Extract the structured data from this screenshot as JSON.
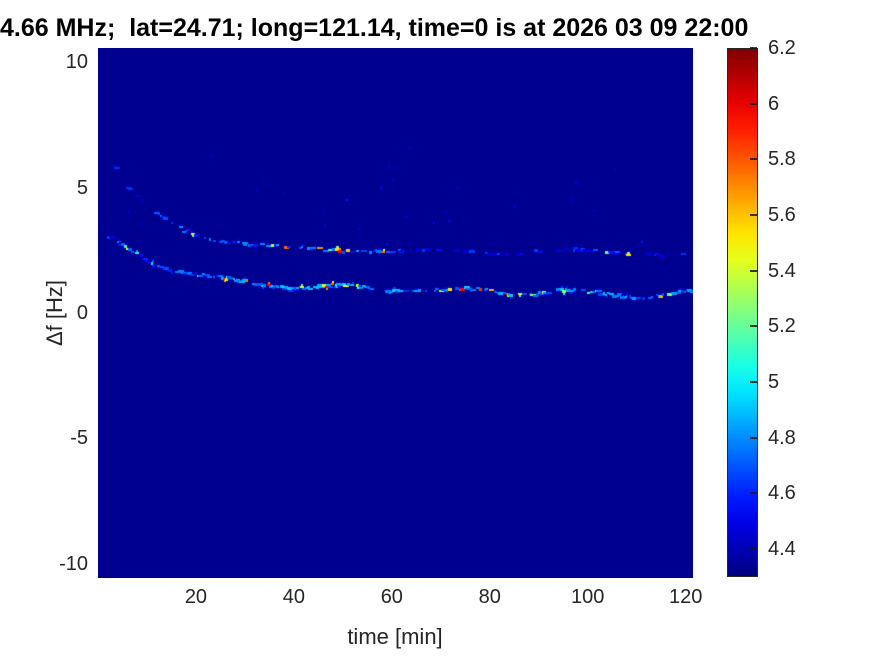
{
  "chart_data": {
    "type": "heatmap",
    "title": "4.66 MHz;  lat=24.71; long=121.14, time=0 is at 2026 03 09 22:00",
    "xlabel": "time [min]",
    "ylabel": "Δf [Hz]",
    "xlim": [
      0,
      121.5
    ],
    "ylim": [
      -10.56,
      10.56
    ],
    "xticks": [
      20,
      40,
      60,
      80,
      100,
      120
    ],
    "yticks": [
      10,
      5,
      0,
      -5,
      -10
    ],
    "grid": false,
    "legend": null,
    "colorbar": {
      "min": 4.3,
      "max": 6.2,
      "ticks": [
        6.2,
        6,
        5.8,
        5.6,
        5.4,
        5.2,
        5,
        4.8,
        4.6,
        4.4
      ],
      "colormap": "jet",
      "position": "right"
    },
    "background_value": 4.33,
    "seed": 20260309,
    "traces": [
      {
        "name": "upper-doppler-trace",
        "points": [
          [
            3.5,
            5.9
          ],
          [
            5,
            5.25
          ],
          [
            7,
            4.8
          ],
          [
            9,
            4.45
          ],
          [
            11,
            4.1
          ],
          [
            13,
            3.85
          ],
          [
            16,
            3.5
          ],
          [
            19,
            3.22
          ],
          [
            22,
            3.03
          ],
          [
            25,
            2.9
          ],
          [
            28,
            2.8
          ],
          [
            32,
            2.7
          ],
          [
            36,
            2.64
          ],
          [
            40,
            2.6
          ],
          [
            45,
            2.55
          ],
          [
            50,
            2.52
          ],
          [
            56,
            2.48
          ],
          [
            62,
            2.45
          ],
          [
            70,
            2.42
          ],
          [
            78,
            2.44
          ],
          [
            86,
            2.4
          ],
          [
            94,
            2.46
          ],
          [
            100,
            2.48
          ],
          [
            106,
            2.4
          ],
          [
            112,
            2.38
          ],
          [
            121,
            2.35
          ]
        ],
        "wiggle": {
          "amp": 0.06,
          "period": 30,
          "phase": 0
        },
        "segments": [
          {
            "t0": 3.5,
            "t1": 12,
            "density": 0.3,
            "base": 4.5,
            "bright": 0.05
          },
          {
            "t0": 12,
            "t1": 30,
            "density": 0.55,
            "base": 4.68,
            "bright": 0.1
          },
          {
            "t0": 30,
            "t1": 62,
            "density": 0.55,
            "base": 4.7,
            "bright": 0.12
          },
          {
            "t0": 62,
            "t1": 94,
            "density": 0.32,
            "base": 4.52,
            "bright": 0.05
          },
          {
            "t0": 94,
            "t1": 112,
            "density": 0.45,
            "base": 4.6,
            "bright": 0.12
          },
          {
            "t0": 112,
            "t1": 121.4,
            "density": 0.32,
            "base": 4.5,
            "bright": 0.05
          }
        ]
      },
      {
        "name": "lower-doppler-trace",
        "points": [
          [
            2.5,
            2.95
          ],
          [
            4,
            2.75
          ],
          [
            6,
            2.55
          ],
          [
            8,
            2.35
          ],
          [
            10,
            2.12
          ],
          [
            12,
            1.95
          ],
          [
            15,
            1.75
          ],
          [
            18,
            1.6
          ],
          [
            21,
            1.48
          ],
          [
            24,
            1.38
          ],
          [
            28,
            1.27
          ],
          [
            32,
            1.18
          ],
          [
            36,
            1.12
          ],
          [
            40,
            1.06
          ],
          [
            44,
            1.0
          ],
          [
            48,
            1.02
          ],
          [
            52,
            1.06
          ],
          [
            56,
            0.97
          ],
          [
            60,
            0.93
          ],
          [
            64,
            1.0
          ],
          [
            68,
            0.9
          ],
          [
            72,
            0.85
          ],
          [
            76,
            0.9
          ],
          [
            80,
            0.92
          ],
          [
            84,
            0.84
          ],
          [
            88,
            0.78
          ],
          [
            92,
            0.82
          ],
          [
            96,
            0.86
          ],
          [
            100,
            0.8
          ],
          [
            104,
            0.78
          ],
          [
            108,
            0.72
          ],
          [
            112,
            0.68
          ],
          [
            116,
            0.74
          ],
          [
            121,
            0.8
          ]
        ],
        "wiggle": {
          "amp": 0.08,
          "period": 24,
          "phase": 1.2
        },
        "segments": [
          {
            "t0": 2.5,
            "t1": 12,
            "density": 0.55,
            "base": 4.62,
            "bright": 0.1
          },
          {
            "t0": 12,
            "t1": 25,
            "density": 0.6,
            "base": 4.7,
            "bright": 0.15
          },
          {
            "t0": 25,
            "t1": 62,
            "density": 0.8,
            "base": 4.82,
            "bright": 0.22
          },
          {
            "t0": 62,
            "t1": 74,
            "density": 0.65,
            "base": 4.72,
            "bright": 0.12
          },
          {
            "t0": 74,
            "t1": 110,
            "density": 0.78,
            "base": 4.8,
            "bright": 0.2
          },
          {
            "t0": 110,
            "t1": 121.4,
            "density": 0.68,
            "base": 4.74,
            "bright": 0.12
          }
        ]
      }
    ],
    "noise": {
      "seed": 77,
      "count": 32,
      "t_range": [
        2,
        119
      ],
      "f_range": [
        2.3,
        6.7
      ],
      "v_range": [
        4.42,
        4.58
      ]
    }
  }
}
